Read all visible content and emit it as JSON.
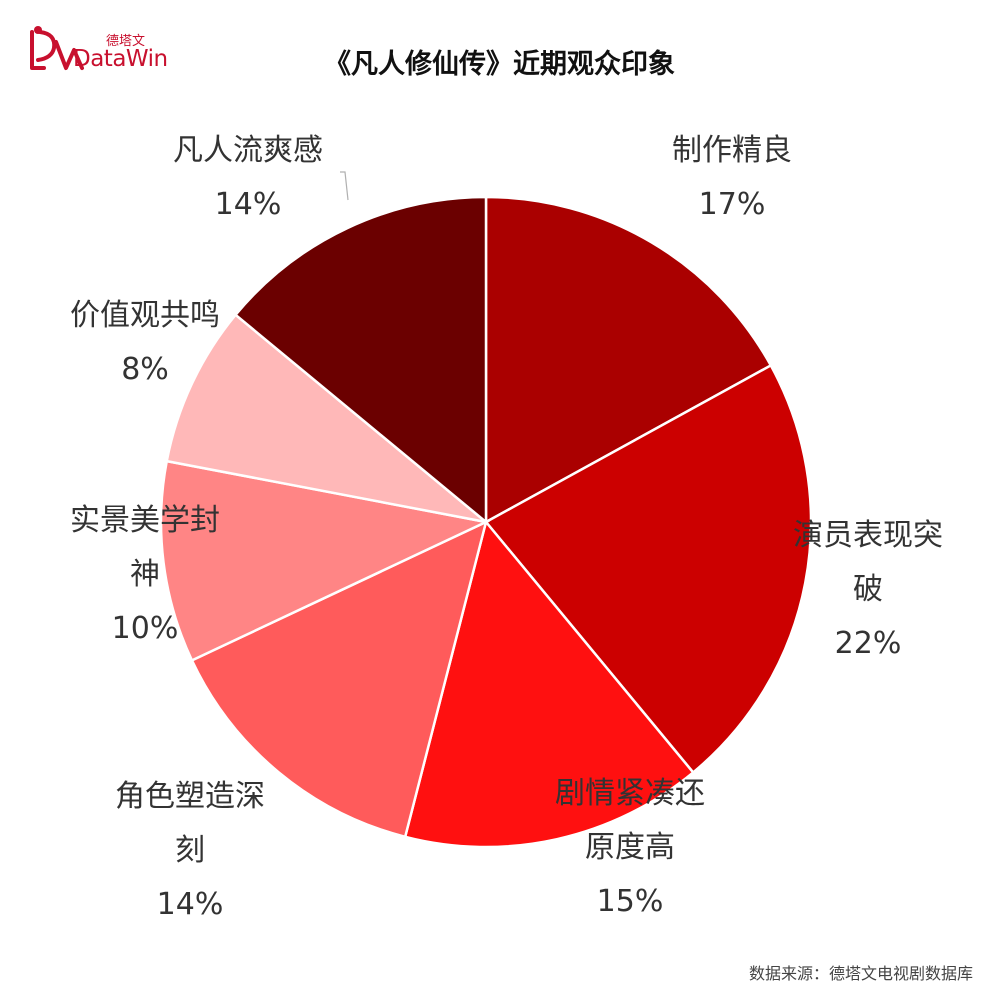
{
  "logo": {
    "cn": "德塔文",
    "en": "DataWin"
  },
  "source": "数据来源：德塔文电视剧数据库",
  "chart_data": {
    "type": "pie",
    "title": "《凡人修仙传》近期观众印象",
    "start_angle_deg": 0,
    "direction": "clockwise",
    "slices": [
      {
        "label_lines": [
          "制作精良"
        ],
        "value": 17,
        "value_label": "17%",
        "color": "#aa0000"
      },
      {
        "label_lines": [
          "演员表现突",
          "破"
        ],
        "value": 22,
        "value_label": "22%",
        "color": "#cc0000"
      },
      {
        "label_lines": [
          "剧情紧凑还",
          "原度高"
        ],
        "value": 15,
        "value_label": "15%",
        "color": "#ff1010"
      },
      {
        "label_lines": [
          "角色塑造深",
          "刻"
        ],
        "value": 14,
        "value_label": "14%",
        "color": "#ff5b5b"
      },
      {
        "label_lines": [
          "实景美学封",
          "神"
        ],
        "value": 10,
        "value_label": "10%",
        "color": "#ff8585"
      },
      {
        "label_lines": [
          "价值观共鸣"
        ],
        "value": 8,
        "value_label": "8%",
        "color": "#ffb8b8"
      },
      {
        "label_lines": [
          "凡人流爽感"
        ],
        "value": 14,
        "value_label": "14%",
        "color": "#6b0000"
      }
    ]
  }
}
